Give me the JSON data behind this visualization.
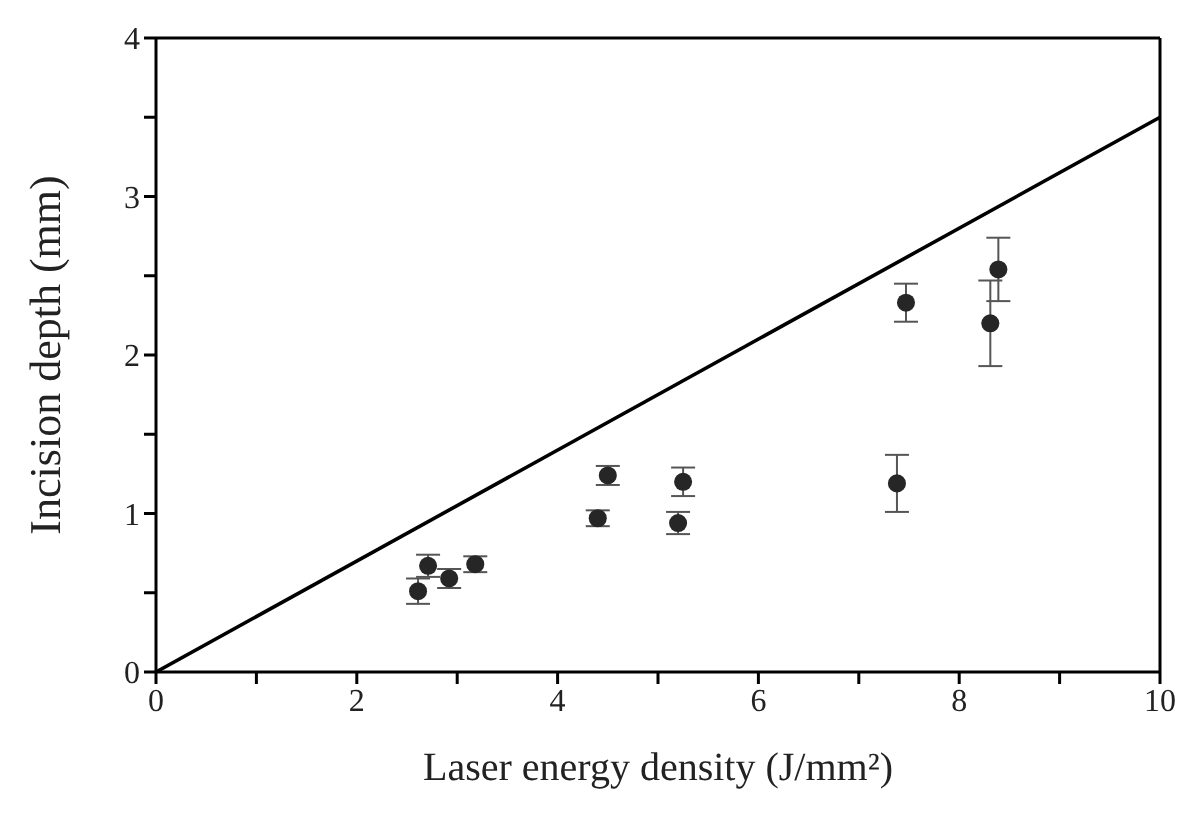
{
  "chart_data": {
    "type": "scatter",
    "xlabel": "Laser energy density (J/mm²)",
    "ylabel": "Incision depth (mm)",
    "xlim": [
      0,
      10
    ],
    "ylim": [
      0,
      4
    ],
    "xticks": [
      0,
      {
        "value": 1,
        "label": null
      },
      2,
      {
        "value": 3,
        "label": null
      },
      4,
      {
        "value": 5,
        "label": null
      },
      6,
      {
        "value": 7,
        "label": null
      },
      8,
      {
        "value": 9,
        "label": null
      },
      10
    ],
    "yticks": [
      0,
      {
        "value": 0.5,
        "label": null
      },
      1,
      {
        "value": 1.5,
        "label": null
      },
      2,
      {
        "value": 2.5,
        "label": null
      },
      3,
      {
        "value": 3.5,
        "label": null
      },
      4
    ],
    "series": [
      {
        "color": "#262626",
        "marker": "circle",
        "x": [
          2.61,
          2.71,
          2.92,
          3.18,
          4.4,
          4.5,
          5.2,
          5.25,
          7.38,
          7.47,
          8.31,
          8.39
        ],
        "values": [
          0.51,
          0.67,
          0.59,
          0.68,
          0.97,
          1.24,
          0.94,
          1.2,
          1.19,
          2.33,
          2.2,
          2.54
        ],
        "errors": [
          0.08,
          0.07,
          0.06,
          0.05,
          0.05,
          0.06,
          0.07,
          0.09,
          0.18,
          0.12,
          0.27,
          0.2
        ]
      },
      {
        "type": "line",
        "color": "#000000",
        "marker": "none",
        "line_style": "solid",
        "x": [
          0,
          10
        ],
        "values": [
          0,
          3.5
        ]
      }
    ]
  }
}
